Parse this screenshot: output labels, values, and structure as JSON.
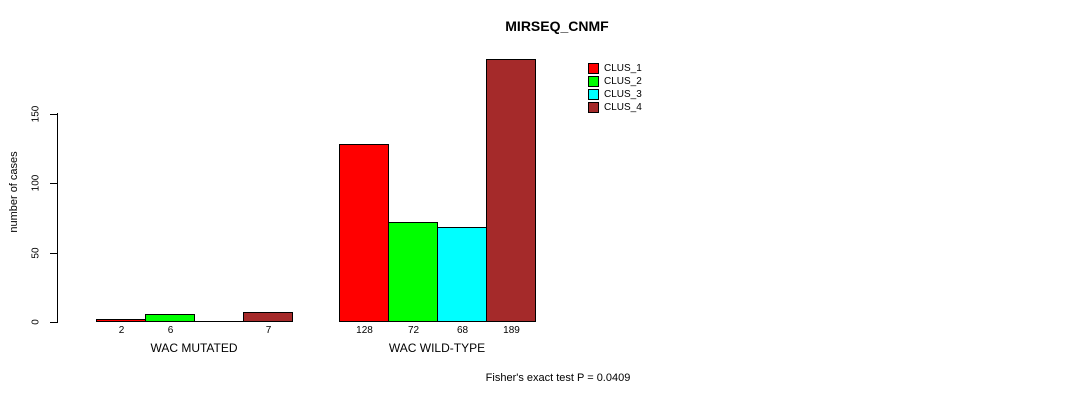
{
  "title": "MIRSEQ_CNMF",
  "y_axis": {
    "label": "number of cases",
    "tick_labels": [
      "0",
      "50",
      "100",
      "150"
    ]
  },
  "footnote": "Fisher's exact test P = 0.0409",
  "legend": {
    "items": [
      {
        "label": "CLUS_1",
        "color": "#ff0000"
      },
      {
        "label": "CLUS_2",
        "color": "#00ff00"
      },
      {
        "label": "CLUS_3",
        "color": "#00ffff"
      },
      {
        "label": "CLUS_4",
        "color": "#a52a2a"
      }
    ]
  },
  "chart_data": {
    "type": "bar",
    "title": "MIRSEQ_CNMF",
    "xlabel": "",
    "ylabel": "number of cases",
    "categories": [
      "WAC MUTATED",
      "WAC WILD-TYPE"
    ],
    "series": [
      {
        "name": "CLUS_1",
        "color": "#ff0000",
        "values": [
          2,
          128
        ]
      },
      {
        "name": "CLUS_2",
        "color": "#00ff00",
        "values": [
          6,
          72
        ]
      },
      {
        "name": "CLUS_3",
        "color": "#00ffff",
        "values": [
          0,
          68
        ]
      },
      {
        "name": "CLUS_4",
        "color": "#a52a2a",
        "values": [
          7,
          189
        ]
      }
    ],
    "bar_value_labels": [
      [
        "2",
        "6",
        "",
        "7"
      ],
      [
        "128",
        "72",
        "68",
        "189"
      ]
    ],
    "ylim": [
      0,
      189
    ],
    "y_ticks": [
      0,
      50,
      100,
      150
    ],
    "grid": false,
    "legend_position": "top-right",
    "annotation": "Fisher's exact test P = 0.0409"
  }
}
